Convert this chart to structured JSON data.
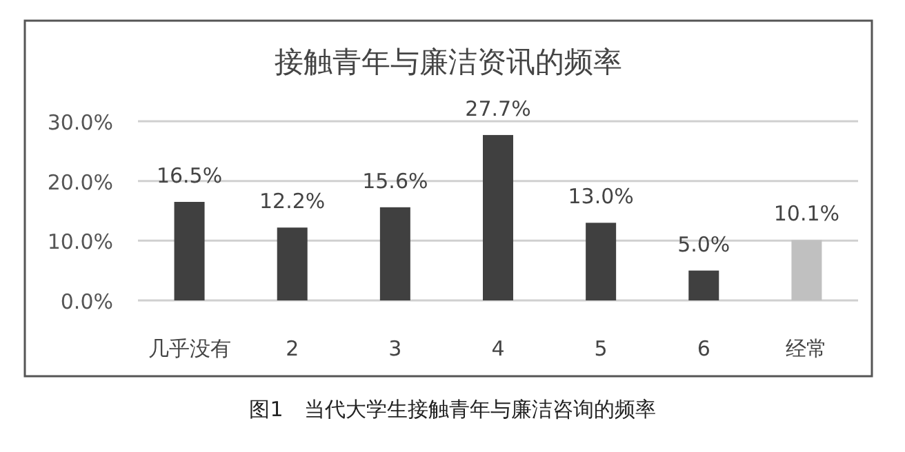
{
  "chart_data": {
    "type": "bar",
    "title": "接触青年与廉洁资讯的频率",
    "categories": [
      "几乎没有",
      "2",
      "3",
      "4",
      "5",
      "6",
      "经常"
    ],
    "values": [
      16.5,
      12.2,
      15.6,
      27.7,
      13.0,
      5.0,
      10.1
    ],
    "value_labels": [
      "16.5%",
      "12.2%",
      "15.6%",
      "27.7%",
      "13.0%",
      "5.0%",
      "10.1%"
    ],
    "colors": [
      "#404040",
      "#404040",
      "#404040",
      "#404040",
      "#404040",
      "#404040",
      "#c0c0c0"
    ],
    "ylim": [
      0,
      30
    ],
    "yticks": [
      {
        "value": 0,
        "label": "0.0%"
      },
      {
        "value": 10,
        "label": "10.0%"
      },
      {
        "value": 20,
        "label": "20.0%"
      },
      {
        "value": 30,
        "label": "30.0%"
      }
    ],
    "grid": "y",
    "annotations": [
      "图1　当代大学生接触青年与廉洁咨询的频率"
    ]
  }
}
